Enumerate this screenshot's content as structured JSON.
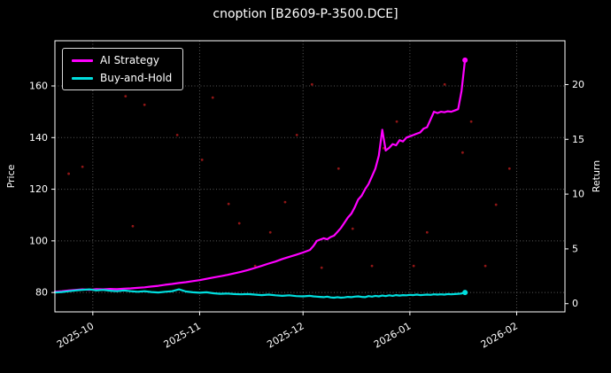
{
  "title": "cnoption [B2609-P-3500.DCE]",
  "colors": {
    "background": "#000000",
    "text": "#ffffff",
    "grid": "#ffffff",
    "spine": "#ffffff",
    "ai_strategy": "#ff00ff",
    "buy_and_hold": "#00dede",
    "scatter_dots": "#a01818"
  },
  "chart_data": {
    "type": "line",
    "title": "cnoption [B2609-P-3500.DCE]",
    "xlabel": "",
    "ylabel_left": "Price",
    "ylabel_right": "Return",
    "grid": true,
    "legend_position": "upper-left",
    "x_unit": "days since 2025-09-20",
    "x_range_days": [
      0,
      148
    ],
    "x_ticks": [
      {
        "day": 11,
        "label": "2025-10"
      },
      {
        "day": 42,
        "label": "2025-11"
      },
      {
        "day": 72,
        "label": "2025-12"
      },
      {
        "day": 103,
        "label": "2026-01"
      },
      {
        "day": 134,
        "label": "2026-02"
      }
    ],
    "ylim_left": [
      72.5,
      177.5
    ],
    "yticks_left": [
      80,
      100,
      120,
      140,
      160
    ],
    "ylim_right": [
      -0.75,
      24.0
    ],
    "yticks_right": [
      0,
      5,
      10,
      15,
      20
    ],
    "series": [
      {
        "name": "AI Strategy",
        "color": "#ff00ff",
        "axis": "left",
        "x": [
          0,
          2,
          4,
          6,
          8,
          10,
          12,
          14,
          16,
          18,
          20,
          22,
          24,
          26,
          28,
          30,
          32,
          34,
          36,
          38,
          40,
          42,
          44,
          46,
          48,
          50,
          52,
          54,
          56,
          58,
          60,
          62,
          64,
          66,
          68,
          70,
          72,
          74,
          75,
          76,
          77,
          78,
          79,
          80,
          81,
          82,
          83,
          84,
          85,
          86,
          87,
          88,
          89,
          90,
          91,
          92,
          93,
          94,
          95,
          96,
          97,
          98,
          99,
          100,
          101,
          102,
          103,
          104,
          105,
          106,
          107,
          108,
          109,
          110,
          111,
          112,
          113,
          114,
          115,
          116,
          117,
          118,
          119
        ],
        "y": [
          80.3,
          80.5,
          80.8,
          81.0,
          81.2,
          81.0,
          81.3,
          81.2,
          81.4,
          81.3,
          81.5,
          81.6,
          81.8,
          82.0,
          82.3,
          82.6,
          83.0,
          83.3,
          83.7,
          84.0,
          84.4,
          84.8,
          85.3,
          85.8,
          86.3,
          86.8,
          87.4,
          88.0,
          88.7,
          89.5,
          90.3,
          91.2,
          92.0,
          93.0,
          93.8,
          94.6,
          95.5,
          96.5,
          98.0,
          100.0,
          100.5,
          101.0,
          100.6,
          101.5,
          102.0,
          103.5,
          105.0,
          107.0,
          109.0,
          110.5,
          113.0,
          116.0,
          117.5,
          120.0,
          122.0,
          125.0,
          128.0,
          133.0,
          143.0,
          135.0,
          136.0,
          137.5,
          137.0,
          139.0,
          138.5,
          140.0,
          140.5,
          141.0,
          141.5,
          142.0,
          143.5,
          144.0,
          147.0,
          150.0,
          149.5,
          150.0,
          149.8,
          150.2,
          150.0,
          150.5,
          151.0,
          158.0,
          170.0
        ]
      },
      {
        "name": "Buy-and-Hold",
        "color": "#00dede",
        "axis": "left",
        "x": [
          0,
          2,
          4,
          6,
          8,
          10,
          12,
          14,
          16,
          18,
          20,
          22,
          24,
          26,
          28,
          30,
          32,
          34,
          36,
          38,
          40,
          42,
          44,
          46,
          48,
          50,
          52,
          54,
          56,
          58,
          60,
          62,
          64,
          66,
          68,
          70,
          72,
          74,
          75,
          76,
          77,
          78,
          79,
          80,
          81,
          82,
          83,
          84,
          85,
          86,
          87,
          88,
          89,
          90,
          91,
          92,
          93,
          94,
          95,
          96,
          97,
          98,
          99,
          100,
          101,
          102,
          103,
          104,
          105,
          106,
          107,
          108,
          109,
          110,
          111,
          112,
          113,
          114,
          115,
          116,
          117,
          118,
          119
        ],
        "y": [
          80.0,
          80.2,
          80.5,
          80.8,
          81.0,
          81.2,
          80.8,
          81.0,
          80.7,
          80.5,
          80.8,
          80.5,
          80.3,
          80.5,
          80.2,
          80.0,
          80.3,
          80.5,
          81.2,
          80.4,
          80.1,
          79.9,
          80.1,
          79.7,
          79.5,
          79.6,
          79.4,
          79.3,
          79.4,
          79.2,
          79.0,
          79.2,
          78.9,
          78.7,
          78.9,
          78.6,
          78.5,
          78.7,
          78.5,
          78.4,
          78.3,
          78.2,
          78.4,
          78.1,
          78.0,
          78.2,
          78.0,
          78.1,
          78.3,
          78.2,
          78.4,
          78.5,
          78.3,
          78.2,
          78.6,
          78.4,
          78.7,
          78.5,
          78.8,
          78.6,
          78.9,
          78.7,
          79.0,
          78.8,
          79.0,
          78.9,
          79.1,
          79.0,
          79.2,
          79.0,
          79.1,
          79.2,
          79.1,
          79.3,
          79.2,
          79.3,
          79.2,
          79.4,
          79.3,
          79.4,
          79.5,
          79.6,
          80.0
        ]
      }
    ],
    "scatter": {
      "name": "signal-dots",
      "color": "#a01818",
      "points": [
        [
          4,
          126.0
        ],
        [
          8,
          128.7
        ],
        [
          20.5,
          156.0
        ],
        [
          22.6,
          105.7
        ],
        [
          26,
          152.7
        ],
        [
          31.6,
          164.0
        ],
        [
          35.5,
          141.0
        ],
        [
          42.7,
          131.4
        ],
        [
          45.8,
          155.5
        ],
        [
          50.4,
          114.3
        ],
        [
          53.5,
          106.8
        ],
        [
          58.1,
          90.3
        ],
        [
          62.5,
          103.3
        ],
        [
          66.8,
          115.0
        ],
        [
          70.2,
          141.0
        ],
        [
          74.6,
          160.6
        ],
        [
          77.4,
          89.6
        ],
        [
          82.3,
          128.0
        ],
        [
          86.4,
          104.7
        ],
        [
          92,
          90.3
        ],
        [
          95.4,
          135.9
        ],
        [
          99.2,
          146.2
        ],
        [
          104.1,
          90.3
        ],
        [
          108,
          103.3
        ],
        [
          113.1,
          160.6
        ],
        [
          118.3,
          134.2
        ],
        [
          120.8,
          146.2
        ],
        [
          124.9,
          90.3
        ],
        [
          128,
          114.0
        ],
        [
          131.9,
          128.0
        ]
      ]
    }
  }
}
